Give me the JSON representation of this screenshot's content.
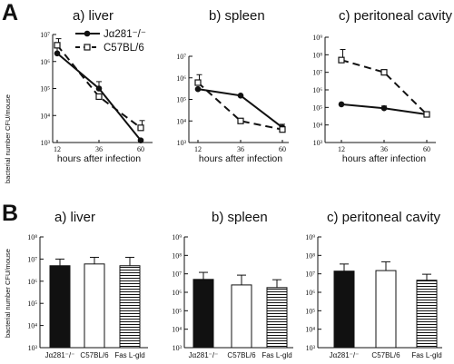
{
  "figure": {
    "panel_a_letter": "A",
    "panel_b_letter": "B",
    "ylabel": "bacterial number CFU/mouse",
    "xlabel": "hours after infection"
  },
  "chart_data": [
    {
      "panel": "A",
      "type": "line",
      "title": "a) liver",
      "xlabel": "hours after infection",
      "ylabel": "bacterial number CFU/mouse",
      "yscale": "log",
      "ylim": [
        1000,
        10000000
      ],
      "y_ticks": [
        "10³",
        "10⁴",
        "10⁵",
        "10⁶",
        "10⁷"
      ],
      "categories": [
        "12",
        "36",
        "60"
      ],
      "legend_position": "top-right",
      "series": [
        {
          "name": "Jα281⁻/⁻",
          "style": "solid-filled-circle",
          "values": [
            2000000,
            100000,
            1200
          ],
          "err": [
            1200000,
            80000,
            0
          ]
        },
        {
          "name": "C57BL/6",
          "style": "dashed-open-square",
          "values": [
            4000000,
            50000,
            3500
          ],
          "err": [
            3000000,
            0,
            3000
          ]
        }
      ]
    },
    {
      "panel": "A",
      "type": "line",
      "title": "b) spleen",
      "xlabel": "hours after infection",
      "ylabel": "bacterial number CFU/mouse",
      "yscale": "log",
      "ylim": [
        1000,
        10000000
      ],
      "y_ticks": [
        "10³",
        "10⁴",
        "10⁵",
        "10⁶",
        "10⁷"
      ],
      "categories": [
        "12",
        "36",
        "60"
      ],
      "series": [
        {
          "name": "Jα281⁻/⁻",
          "style": "solid-filled-circle",
          "values": [
            300000,
            150000,
            5000
          ],
          "err": [
            0,
            0,
            2000
          ]
        },
        {
          "name": "C57BL/6",
          "style": "dashed-open-square",
          "values": [
            600000,
            10000,
            4000
          ],
          "err": [
            800000,
            0,
            0
          ]
        }
      ]
    },
    {
      "panel": "A",
      "type": "line",
      "title": "c) peritoneal cavity",
      "xlabel": "hours after infection",
      "ylabel": "bacterial number CFU/mouse",
      "yscale": "log",
      "ylim": [
        1000,
        1000000000
      ],
      "y_ticks": [
        "10³",
        "10⁴",
        "10⁵",
        "10⁶",
        "10⁷",
        "10⁸",
        "10⁹"
      ],
      "categories": [
        "12",
        "36",
        "60"
      ],
      "series": [
        {
          "name": "Jα281⁻/⁻",
          "style": "solid-filled-circle",
          "values": [
            150000,
            90000,
            40000
          ],
          "err": [
            0,
            30000,
            0
          ]
        },
        {
          "name": "C57BL/6",
          "style": "dashed-open-square",
          "values": [
            50000000,
            10000000,
            40000
          ],
          "err": [
            150000000,
            0,
            0
          ]
        }
      ]
    },
    {
      "panel": "B",
      "type": "bar",
      "title": "a) liver",
      "ylabel": "bacterial number CFU/mouse",
      "yscale": "log",
      "ylim": [
        1000,
        100000000
      ],
      "y_ticks": [
        "10³",
        "10⁴",
        "10⁵",
        "10⁶",
        "10⁷",
        "10⁸"
      ],
      "categories": [
        "Jα281⁻/⁻",
        "C57BL/6",
        "Fas L-gld"
      ],
      "category_fills": [
        "black",
        "white",
        "horizontal-stripes"
      ],
      "values": [
        5000000,
        6000000,
        5000000
      ],
      "err": [
        5000000,
        6000000,
        7000000
      ]
    },
    {
      "panel": "B",
      "type": "bar",
      "title": "b) spleen",
      "yscale": "log",
      "ylim": [
        1000,
        1000000000
      ],
      "y_ticks": [
        "10³",
        "10⁴",
        "10⁵",
        "10⁶",
        "10⁷",
        "10⁸",
        "10⁹"
      ],
      "categories": [
        "Jα281⁻/⁻",
        "C57BL/6",
        "Fas L-gld"
      ],
      "category_fills": [
        "black",
        "white",
        "horizontal-stripes"
      ],
      "values": [
        5000000,
        2500000,
        1800000
      ],
      "err": [
        7000000,
        6000000,
        3000000
      ]
    },
    {
      "panel": "B",
      "type": "bar",
      "title": "c) peritoneal cavity",
      "yscale": "log",
      "ylim": [
        1000,
        1000000000
      ],
      "y_ticks": [
        "10³",
        "10⁴",
        "10⁵",
        "10⁶",
        "10⁷",
        "10⁸",
        "10⁹"
      ],
      "categories": [
        "Jα281⁻/⁻",
        "C57BL/6",
        "Fas L-gld"
      ],
      "category_fills": [
        "black",
        "white",
        "horizontal-stripes"
      ],
      "values": [
        14000000,
        15000000,
        4500000
      ],
      "err": [
        20000000,
        30000000,
        5000000
      ]
    }
  ]
}
